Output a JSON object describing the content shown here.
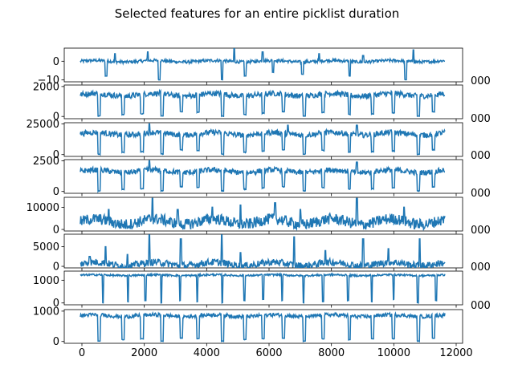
{
  "chart_data": {
    "type": "line",
    "title": "Selected features for an entire picklist duration",
    "line_color": "#1f77b4",
    "grid": false,
    "x_range": [
      0,
      11600
    ],
    "shared_x_ticks": [
      "0",
      "2000",
      "4000",
      "6000",
      "8000",
      "10000",
      "12000"
    ],
    "subplots": [
      {
        "ylim": [
          -11,
          7
        ],
        "y_ticks": [
          {
            "value": 0,
            "label": "0"
          },
          {
            "value": -10,
            "label": "−10"
          }
        ],
        "baseline": 0,
        "noise": 0.8,
        "dips": [
          [
            780,
            860,
            -8
          ],
          [
            2480,
            2540,
            -10
          ],
          [
            4490,
            4540,
            -10
          ],
          [
            5220,
            5270,
            -8
          ],
          [
            6100,
            6150,
            -6
          ],
          [
            7040,
            7100,
            -7
          ],
          [
            8540,
            8600,
            -8
          ],
          [
            10320,
            10380,
            -10
          ]
        ],
        "spikes": [
          [
            1100,
            4
          ],
          [
            2150,
            5
          ],
          [
            4900,
            7
          ],
          [
            5800,
            5
          ],
          [
            7600,
            4
          ],
          [
            9000,
            3
          ],
          [
            10600,
            6
          ]
        ]
      },
      {
        "ylim": [
          -150,
          2100
        ],
        "y_ticks": [
          {
            "value": 0,
            "label": "0"
          },
          {
            "value": 2000,
            "label": "2000"
          }
        ],
        "baseline": 1450,
        "noise": 180,
        "dips": [
          [
            560,
            640,
            0
          ],
          [
            1320,
            1400,
            100
          ],
          [
            1920,
            2010,
            150
          ],
          [
            2560,
            2640,
            0
          ],
          [
            3180,
            3260,
            300
          ],
          [
            3700,
            3780,
            250
          ],
          [
            4480,
            4560,
            0
          ],
          [
            5200,
            5280,
            100
          ],
          [
            5780,
            5860,
            200
          ],
          [
            6420,
            6500,
            300
          ],
          [
            7080,
            7160,
            0
          ],
          [
            7680,
            7760,
            250
          ],
          [
            8520,
            8600,
            100
          ],
          [
            9260,
            9340,
            150
          ],
          [
            9920,
            10000,
            200
          ],
          [
            10720,
            10800,
            0
          ],
          [
            11200,
            11280,
            300
          ]
        ],
        "spikes": []
      },
      {
        "ylim": [
          -1500,
          26000
        ],
        "y_ticks": [
          {
            "value": 0,
            "label": "0"
          },
          {
            "value": 25000,
            "label": "25000"
          }
        ],
        "baseline": 17000,
        "noise": 2200,
        "dips": [
          [
            560,
            640,
            0
          ],
          [
            1320,
            1400,
            1500
          ],
          [
            1920,
            2010,
            2000
          ],
          [
            2560,
            2640,
            0
          ],
          [
            3180,
            3260,
            3500
          ],
          [
            3700,
            3780,
            3000
          ],
          [
            4480,
            4560,
            0
          ],
          [
            5200,
            5280,
            1500
          ],
          [
            5780,
            5860,
            2500
          ],
          [
            6420,
            6500,
            3500
          ],
          [
            7080,
            7160,
            0
          ],
          [
            7680,
            7760,
            3000
          ],
          [
            8520,
            8600,
            1500
          ],
          [
            9260,
            9340,
            2000
          ],
          [
            9920,
            10000,
            2500
          ],
          [
            10720,
            10800,
            0
          ],
          [
            11200,
            11280,
            3500
          ]
        ],
        "spikes": [
          [
            2200,
            25000
          ],
          [
            6600,
            24000
          ],
          [
            8800,
            24000
          ]
        ]
      },
      {
        "ylim": [
          -150,
          2600
        ],
        "y_ticks": [
          {
            "value": 0,
            "label": "0"
          },
          {
            "value": 2500,
            "label": "2500"
          }
        ],
        "baseline": 1650,
        "noise": 220,
        "dips": [
          [
            560,
            640,
            0
          ],
          [
            1320,
            1400,
            150
          ],
          [
            1920,
            2010,
            200
          ],
          [
            2560,
            2640,
            0
          ],
          [
            3180,
            3260,
            350
          ],
          [
            3700,
            3780,
            300
          ],
          [
            4480,
            4560,
            0
          ],
          [
            5200,
            5280,
            150
          ],
          [
            5780,
            5860,
            250
          ],
          [
            6420,
            6500,
            350
          ],
          [
            7080,
            7160,
            0
          ],
          [
            7680,
            7760,
            300
          ],
          [
            8520,
            8600,
            150
          ],
          [
            9260,
            9340,
            200
          ],
          [
            9920,
            10000,
            250
          ],
          [
            10720,
            10800,
            0
          ],
          [
            11200,
            11280,
            350
          ]
        ],
        "spikes": [
          [
            2200,
            2500
          ],
          [
            8800,
            2400
          ]
        ]
      },
      {
        "ylim": [
          -700,
          14500
        ],
        "y_ticks": [
          {
            "value": 0,
            "label": "0"
          },
          {
            "value": 10000,
            "label": "10000"
          }
        ],
        "baseline": 3500,
        "noise": 2500,
        "dips": [],
        "spikes": [
          [
            2300,
            14000
          ],
          [
            8800,
            14000
          ],
          [
            5100,
            11000
          ],
          [
            6200,
            12000
          ],
          [
            4200,
            10000
          ],
          [
            10300,
            10000
          ],
          [
            900,
            9000
          ],
          [
            3100,
            9000
          ],
          [
            7000,
            9000
          ]
        ]
      },
      {
        "ylim": [
          -400,
          8200
        ],
        "y_ticks": [
          {
            "value": 0,
            "label": "0"
          },
          {
            "value": 5000,
            "label": "5000"
          }
        ],
        "baseline": 600,
        "noise": 900,
        "dips": [],
        "spikes": [
          [
            300,
            2500
          ],
          [
            800,
            5000
          ],
          [
            2200,
            8000
          ],
          [
            3200,
            7000
          ],
          [
            4500,
            8000
          ],
          [
            6800,
            7500
          ],
          [
            9000,
            7000
          ],
          [
            10800,
            7000
          ],
          [
            5100,
            3500
          ],
          [
            7800,
            4000
          ],
          [
            1500,
            3000
          ],
          [
            9800,
            4500
          ]
        ]
      },
      {
        "ylim": [
          -80,
          1400
        ],
        "y_ticks": [
          {
            "value": 0,
            "label": "0"
          },
          {
            "value": 1000,
            "label": "1000"
          }
        ],
        "baseline": 1220,
        "noise": 40,
        "dips": [
          [
            700,
            740,
            0
          ],
          [
            1500,
            1540,
            50
          ],
          [
            2050,
            2090,
            100
          ],
          [
            2560,
            2600,
            0
          ],
          [
            3150,
            3190,
            100
          ],
          [
            3700,
            3740,
            50
          ],
          [
            4500,
            4540,
            0
          ],
          [
            5200,
            5240,
            100
          ],
          [
            5800,
            5840,
            150
          ],
          [
            6400,
            6440,
            100
          ],
          [
            7080,
            7120,
            0
          ],
          [
            7700,
            7740,
            50
          ],
          [
            8500,
            8540,
            100
          ],
          [
            9250,
            9290,
            50
          ],
          [
            9950,
            9990,
            150
          ],
          [
            10720,
            10760,
            0
          ],
          [
            11300,
            11340,
            100
          ]
        ],
        "spikes": []
      },
      {
        "ylim": [
          -60,
          1050
        ],
        "y_ticks": [
          {
            "value": 0,
            "label": "0"
          },
          {
            "value": 1000,
            "label": "1000"
          }
        ],
        "baseline": 850,
        "noise": 60,
        "dips": [
          [
            560,
            640,
            0
          ],
          [
            1320,
            1400,
            50
          ],
          [
            1920,
            2010,
            80
          ],
          [
            2560,
            2640,
            0
          ],
          [
            3180,
            3260,
            100
          ],
          [
            3700,
            3780,
            80
          ],
          [
            4480,
            4560,
            0
          ],
          [
            5200,
            5280,
            50
          ],
          [
            5780,
            5860,
            80
          ],
          [
            6420,
            6500,
            100
          ],
          [
            7080,
            7160,
            0
          ],
          [
            7680,
            7760,
            80
          ],
          [
            8520,
            8600,
            50
          ],
          [
            9260,
            9340,
            80
          ],
          [
            9920,
            10000,
            80
          ],
          [
            10720,
            10800,
            0
          ],
          [
            11200,
            11280,
            100
          ]
        ],
        "spikes": []
      }
    ],
    "stray_right_labels": [
      "000",
      "000",
      "000",
      "000",
      "000",
      "000",
      "000"
    ]
  }
}
